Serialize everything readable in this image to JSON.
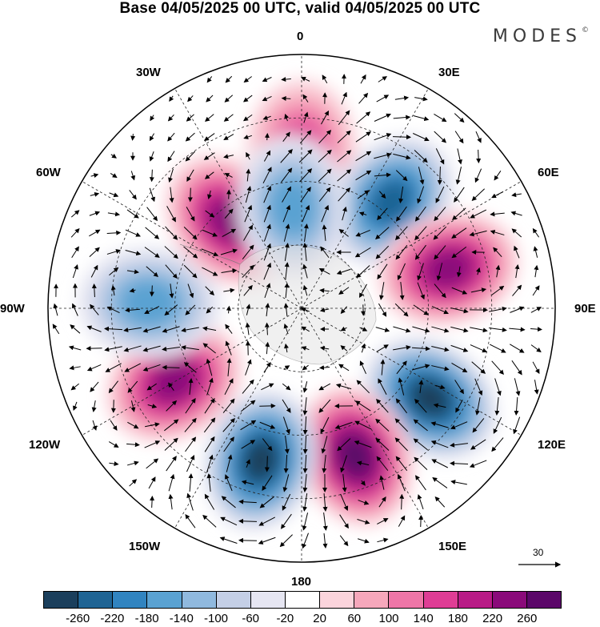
{
  "title": "Base 04/05/2025 00 UTC, valid 04/05/2025 00 UTC",
  "logo": "MODES",
  "logo_mark": "©",
  "longitude_labels": {
    "lon_0": "0",
    "lon_30e": "30E",
    "lon_60e": "60E",
    "lon_90e": "90E",
    "lon_120e": "120E",
    "lon_150e": "150E",
    "lon_180": "180",
    "lon_150w": "150W",
    "lon_120w": "120W",
    "lon_90w": "90W",
    "lon_60w": "60W",
    "lon_30w": "30W"
  },
  "vector_reference": "30",
  "colorbar": {
    "ticks": [
      "-260",
      "-220",
      "-180",
      "-140",
      "-100",
      "-60",
      "-20",
      "20",
      "60",
      "100",
      "140",
      "180",
      "220",
      "260"
    ],
    "colors": [
      "#1b3f5c",
      "#1f6494",
      "#3184c0",
      "#5aa2d2",
      "#90b9de",
      "#c4cfe6",
      "#e6e6f2",
      "#ffffff",
      "#fbd4dc",
      "#f6a7bb",
      "#ee76a7",
      "#df3d95",
      "#b81b86",
      "#8a0a7a",
      "#5b0769"
    ]
  },
  "anomaly_centres": [
    {
      "sign": "positive",
      "lon": 0,
      "lat_from_pole": 0.62,
      "level": 3
    },
    {
      "sign": "negative",
      "lon": 40,
      "lat_from_pole": 0.55,
      "level": 5
    },
    {
      "sign": "positive",
      "lon": 75,
      "lat_from_pole": 0.6,
      "level": 5
    },
    {
      "sign": "negative",
      "lon": 125,
      "lat_from_pole": 0.62,
      "level": 6
    },
    {
      "sign": "positive",
      "lon": 160,
      "lat_from_pole": 0.62,
      "level": 6
    },
    {
      "sign": "negative",
      "lon": 195,
      "lat_from_pole": 0.62,
      "level": 6
    },
    {
      "sign": "positive",
      "lon": 240,
      "lat_from_pole": 0.58,
      "level": 5
    },
    {
      "sign": "negative",
      "lon": 272,
      "lat_from_pole": 0.6,
      "level": 3
    },
    {
      "sign": "positive",
      "lon": 320,
      "lat_from_pole": 0.45,
      "level": 5
    },
    {
      "sign": "negative",
      "lon": 355,
      "lat_from_pole": 0.4,
      "level": 3
    }
  ]
}
